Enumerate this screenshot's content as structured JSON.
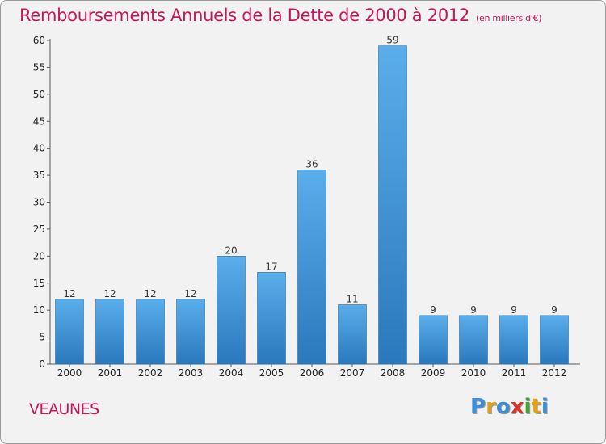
{
  "header": {
    "title": "Remboursements Annuels de la Dette de 2000 à 2012",
    "unit": "(en milliers d'€)"
  },
  "footer": {
    "commune": "VEAUNES",
    "logo_text": "Proxiti"
  },
  "chart_data": {
    "type": "bar",
    "title": "Remboursements Annuels de la Dette de 2000 à 2012",
    "subtitle": "(en milliers d'€)",
    "xlabel": "",
    "ylabel": "",
    "categories": [
      "2000",
      "2001",
      "2002",
      "2003",
      "2004",
      "2005",
      "2006",
      "2007",
      "2008",
      "2009",
      "2010",
      "2011",
      "2012"
    ],
    "values": [
      12,
      12,
      12,
      12,
      20,
      17,
      36,
      11,
      59,
      9,
      9,
      9,
      9
    ],
    "ylim": [
      0,
      60
    ],
    "yticks": [
      0,
      5,
      10,
      15,
      20,
      25,
      30,
      35,
      40,
      45,
      50,
      55,
      60
    ],
    "grid": false,
    "legend": "none",
    "colors": {
      "bar_top": "#5aaeea",
      "bar_bottom": "#2a78bd",
      "title": "#c2185b"
    }
  }
}
